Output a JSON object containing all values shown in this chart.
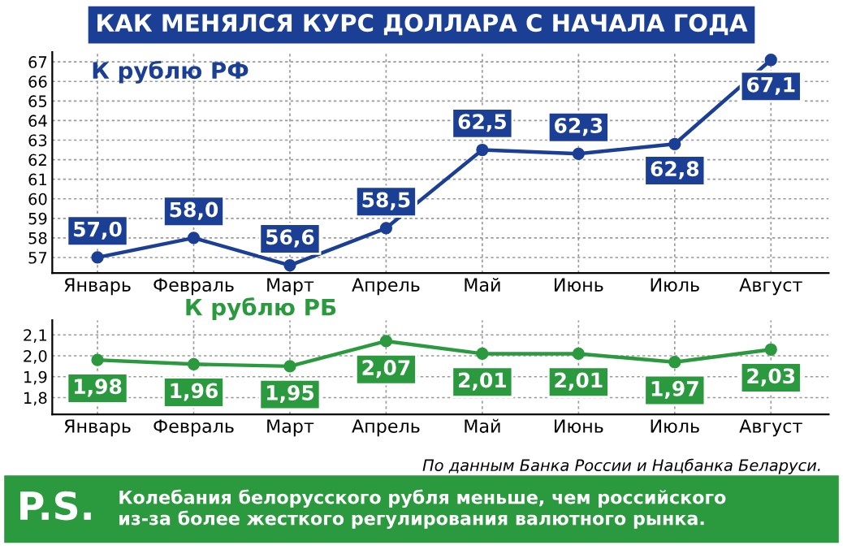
{
  "chart_data": [
    {
      "type": "line",
      "title": "КАК МЕНЯЛСЯ КУРС ДОЛЛАРА С НАЧАЛА ГОДА",
      "subtitle": "К рублю РФ",
      "categories": [
        "Январь",
        "Февраль",
        "Март",
        "Апрель",
        "Май",
        "Июнь",
        "Июль",
        "Август"
      ],
      "series": [
        {
          "color": "#1b3f94",
          "values": [
            57.0,
            58.0,
            56.6,
            58.5,
            62.5,
            62.3,
            62.8,
            67.1
          ],
          "value_labels": [
            "57,0",
            "58,0",
            "56,6",
            "58,5",
            "62,5",
            "62,3",
            "62,8",
            "67,1"
          ]
        }
      ],
      "ylim": [
        56.2,
        67.5
      ],
      "yticks": [
        57,
        58,
        59,
        60,
        61,
        62,
        63,
        64,
        65,
        66,
        67
      ],
      "grid": true,
      "marker": "circle",
      "line_style": "solid"
    },
    {
      "type": "line",
      "title": "К рублю РБ",
      "categories": [
        "Январь",
        "Февраль",
        "Март",
        "Апрель",
        "Май",
        "Июнь",
        "Июль",
        "Август"
      ],
      "series": [
        {
          "color": "#2b9a3e",
          "values": [
            1.98,
            1.96,
            1.95,
            2.07,
            2.01,
            2.01,
            1.97,
            2.03
          ],
          "value_labels": [
            "1,98",
            "1,96",
            "1,95",
            "2,07",
            "2,01",
            "2,01",
            "1,97",
            "2,03"
          ]
        }
      ],
      "ylim": [
        1.72,
        2.17
      ],
      "yticks": [
        {
          "value": 1.8,
          "label": "1,8"
        },
        {
          "value": 1.9,
          "label": "1,9"
        },
        {
          "value": 2.0,
          "label": "2,0"
        },
        {
          "value": 2.1,
          "label": "2,1"
        }
      ],
      "grid": true,
      "marker": "circle",
      "line_style": "solid",
      "annotations": [
        "По данным Банка России и Нацбанка Беларуси.",
        "P.S.",
        "Колебания белорусского рубля меньше, чем российского\nиз-за более жесткого регулирования валютного рынка."
      ]
    }
  ]
}
